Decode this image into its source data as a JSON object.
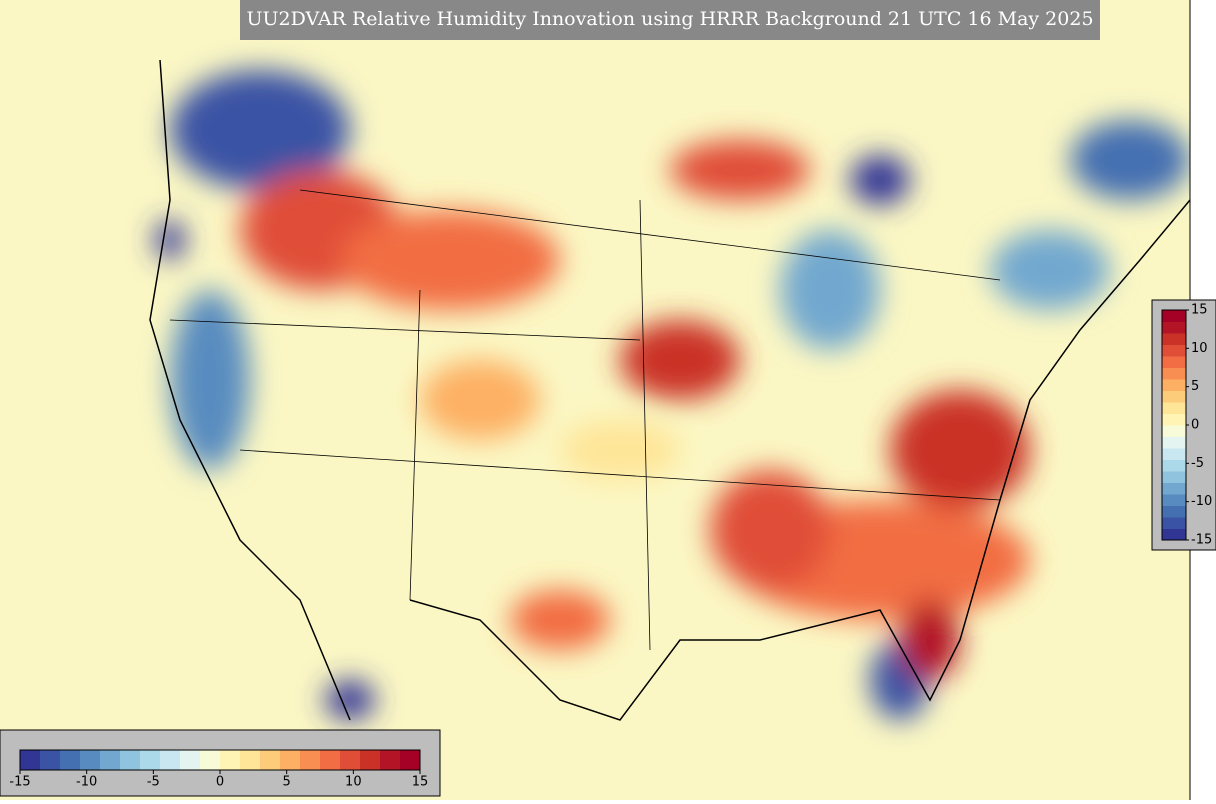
{
  "header": {
    "title": "UU2DVAR Relative Humidity Innovation using HRRR Background 21 UTC 16 May 2025"
  },
  "colorbar": {
    "lim": [
      -15,
      15
    ],
    "ticks": [
      -15,
      -10,
      -5,
      0,
      5,
      10,
      15
    ],
    "colors": [
      "#313695",
      "#3a53a4",
      "#4470b1",
      "#588cc0",
      "#72a8cf",
      "#90c3dd",
      "#acd9e9",
      "#c8e7f1",
      "#e4f4f1",
      "#f7fbd8",
      "#fff4b4",
      "#fee597",
      "#fdcc7b",
      "#fdb063",
      "#f98e52",
      "#f26d43",
      "#e04e38",
      "#ca3127",
      "#b31526",
      "#a50026"
    ]
  }
}
